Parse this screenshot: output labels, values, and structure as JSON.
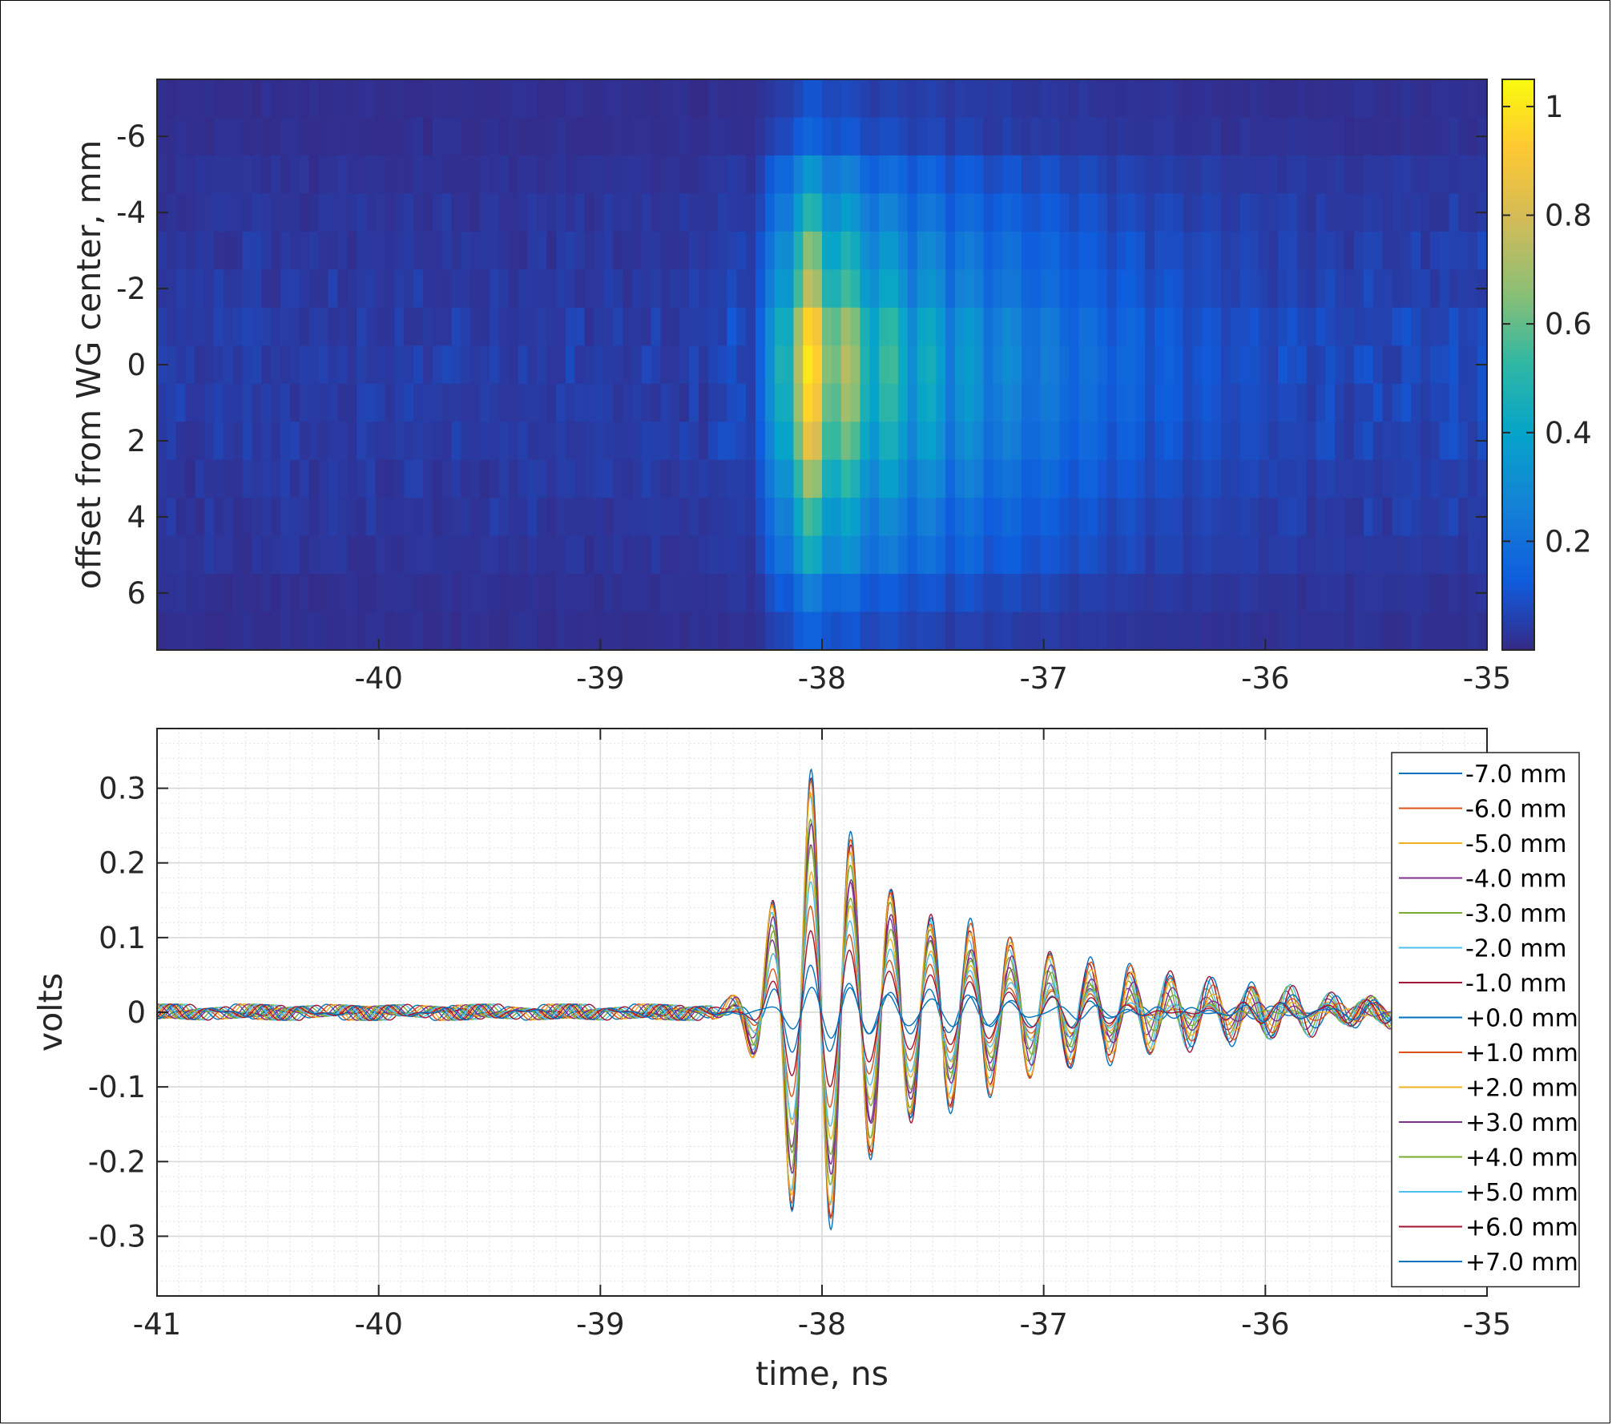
{
  "chart_data": [
    {
      "type": "heatmap",
      "ylabel": "offset from WG center, mm",
      "xlim": [
        -41,
        -35
      ],
      "ylim": [
        -7.5,
        7.5
      ],
      "x_ticks": [
        "-40",
        "-39",
        "-38",
        "-37",
        "-36",
        "-35"
      ],
      "y_ticks": [
        "-6",
        "-4",
        "-2",
        "0",
        "2",
        "4",
        "6"
      ],
      "rows_mm": [
        -7,
        -6,
        -5,
        -4,
        -3,
        -2,
        -1,
        0,
        1,
        2,
        3,
        4,
        5,
        6,
        7
      ],
      "row_peak": [
        0.1,
        0.15,
        0.35,
        0.5,
        0.65,
        0.75,
        0.95,
        1.0,
        0.95,
        0.85,
        0.7,
        0.55,
        0.45,
        0.25,
        0.15
      ],
      "colorbar": {
        "min": 0,
        "max": 1.05,
        "ticks": [
          "0.2",
          "0.4",
          "0.6",
          "0.8",
          "1"
        ],
        "colormap": "parula"
      }
    },
    {
      "type": "line",
      "xlabel": "time, ns",
      "ylabel": "volts",
      "xlim": [
        -41,
        -35
      ],
      "ylim": [
        -0.38,
        0.38
      ],
      "x_ticks": [
        "-41",
        "-40",
        "-39",
        "-38",
        "-37",
        "-36",
        "-35"
      ],
      "y_ticks": [
        "0.3",
        "0.2",
        "0.1",
        "0",
        "-0.1",
        "-0.2",
        "-0.3"
      ],
      "grid": true,
      "legend_position": "top-right",
      "pulse": {
        "center_ns": -38.05,
        "period_ns": 0.18,
        "peak_v": 0.32,
        "onset_ns": -38.5
      },
      "series": [
        {
          "name": "-7.0 mm",
          "color": "#0072BD",
          "amp": 0.2
        },
        {
          "name": "-6.0 mm",
          "color": "#D95319",
          "amp": 0.45
        },
        {
          "name": "-5.0 mm",
          "color": "#EDB120",
          "amp": 0.6
        },
        {
          "name": "-4.0 mm",
          "color": "#7E2F8E",
          "amp": 0.72
        },
        {
          "name": "-3.0 mm",
          "color": "#77AC30",
          "amp": 0.82
        },
        {
          "name": "-2.0 mm",
          "color": "#4DBEEE",
          "amp": 0.9
        },
        {
          "name": "-1.0 mm",
          "color": "#A2142F",
          "amp": 0.96
        },
        {
          "name": "+0.0 mm",
          "color": "#0072BD",
          "amp": 1.0
        },
        {
          "name": "+1.0 mm",
          "color": "#D95319",
          "amp": 0.97
        },
        {
          "name": "+2.0 mm",
          "color": "#EDB120",
          "amp": 0.93
        },
        {
          "name": "+3.0 mm",
          "color": "#7E2F8E",
          "amp": 0.8
        },
        {
          "name": "+4.0 mm",
          "color": "#77AC30",
          "amp": 0.7
        },
        {
          "name": "+5.0 mm",
          "color": "#4DBEEE",
          "amp": 0.55
        },
        {
          "name": "+6.0 mm",
          "color": "#A2142F",
          "amp": 0.35
        },
        {
          "name": "+7.0 mm",
          "color": "#0072BD",
          "amp": 0.12
        }
      ]
    }
  ]
}
